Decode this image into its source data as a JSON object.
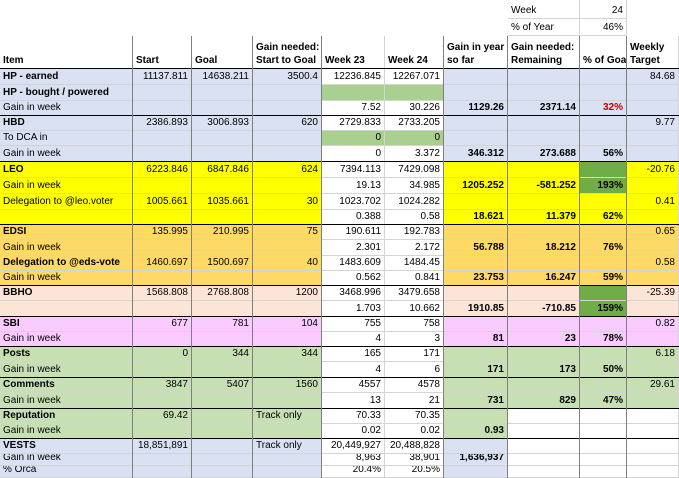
{
  "colors": {
    "blue": "#d9e1f2",
    "yellow": "#ffff00",
    "orange": "#ffd966",
    "peach": "#fce4d6",
    "pink": "#f9ccff",
    "green": "#c6e0b4",
    "bright_green": "#70ad47",
    "light_green": "#a9d08e",
    "white": "#ffffff",
    "text_red": "#c00000"
  },
  "week_label": "Week",
  "week_value": "24",
  "pct_year_label": "% of Year",
  "pct_year_value": "46%",
  "headers": [
    {
      "id": "item",
      "lines": [
        "Item"
      ]
    },
    {
      "id": "start",
      "lines": [
        "Start"
      ]
    },
    {
      "id": "goal",
      "lines": [
        "Goal"
      ]
    },
    {
      "id": "gain-needed",
      "lines": [
        "Gain needed:",
        "Start to Goal"
      ]
    },
    {
      "id": "week-23",
      "lines": [
        "Week 23"
      ]
    },
    {
      "id": "week-24",
      "lines": [
        "Week 24"
      ]
    },
    {
      "id": "gain-year",
      "lines": [
        "Gain in year",
        "so far"
      ]
    },
    {
      "id": "gain-remaining",
      "lines": [
        "Gain needed:",
        "Remaining"
      ]
    },
    {
      "id": "pct-goal",
      "lines": [
        "% of Goal"
      ]
    },
    {
      "id": "weekly-target",
      "lines": [
        "Weekly",
        "Target"
      ]
    }
  ],
  "rows": [
    [
      "blue",
      [
        "HP - earned",
        "b",
        "blue"
      ],
      [
        "11137.811",
        "",
        "blue"
      ],
      [
        "14638.211",
        "",
        "blue"
      ],
      [
        "3500.4",
        "",
        "blue"
      ],
      [
        "12236.845",
        "",
        "white"
      ],
      [
        "12267.071",
        "",
        "white"
      ],
      [
        "",
        "",
        "blue"
      ],
      [
        "",
        "",
        "blue"
      ],
      [
        "",
        "",
        "blue"
      ],
      [
        "84.68",
        "",
        "blue"
      ]
    ],
    [
      "blue",
      [
        "HP - bought / powered",
        "b",
        "blue"
      ],
      [
        "",
        "",
        "blue"
      ],
      [
        "",
        "",
        "blue"
      ],
      [
        "",
        "",
        "blue"
      ],
      [
        "",
        "",
        "light_green"
      ],
      [
        "",
        "",
        "light_green"
      ],
      [
        "",
        "",
        "blue"
      ],
      [
        "",
        "",
        "blue"
      ],
      [
        "",
        "",
        "blue"
      ],
      [
        "",
        "",
        "blue"
      ]
    ],
    [
      "blue",
      [
        "Gain in week",
        "",
        "blue"
      ],
      [
        "",
        "",
        "blue"
      ],
      [
        "",
        "",
        "blue"
      ],
      [
        "",
        "",
        "blue"
      ],
      [
        "7.52",
        "",
        "white"
      ],
      [
        "30.226",
        "",
        "white"
      ],
      [
        "1129.26",
        "b",
        "blue"
      ],
      [
        "2371.14",
        "b",
        "blue"
      ],
      [
        "32%",
        "br",
        "blue"
      ],
      [
        "",
        "",
        "blue"
      ]
    ],
    [
      "blue",
      [
        "HBD",
        "b",
        "blue"
      ],
      [
        "2386.893",
        "",
        "blue"
      ],
      [
        "3006.893",
        "",
        "blue"
      ],
      [
        "620",
        "",
        "blue"
      ],
      [
        "2729.833",
        "",
        "white"
      ],
      [
        "2733.205",
        "",
        "white"
      ],
      [
        "",
        "",
        "blue"
      ],
      [
        "",
        "",
        "blue"
      ],
      [
        "",
        "",
        "blue"
      ],
      [
        "9.77",
        "",
        "blue"
      ]
    ],
    [
      "blue",
      [
        "To DCA in",
        "",
        "blue"
      ],
      [
        "",
        "",
        "blue"
      ],
      [
        "",
        "",
        "blue"
      ],
      [
        "",
        "",
        "blue"
      ],
      [
        "0",
        "",
        "light_green"
      ],
      [
        "0",
        "",
        "light_green"
      ],
      [
        "",
        "",
        "blue"
      ],
      [
        "",
        "",
        "blue"
      ],
      [
        "",
        "",
        "blue"
      ],
      [
        "",
        "",
        "blue"
      ]
    ],
    [
      "blue",
      [
        "Gain in week",
        "",
        "blue"
      ],
      [
        "",
        "",
        "blue"
      ],
      [
        "",
        "",
        "blue"
      ],
      [
        "",
        "",
        "blue"
      ],
      [
        "0",
        "",
        "white"
      ],
      [
        "3.372",
        "",
        "white"
      ],
      [
        "346.312",
        "b",
        "blue"
      ],
      [
        "273.688",
        "b",
        "blue"
      ],
      [
        "56%",
        "b",
        "blue"
      ],
      [
        "",
        "",
        "blue"
      ]
    ],
    [
      "yellow",
      [
        "LEO",
        "b",
        "yellow"
      ],
      [
        "6223.846",
        "",
        "yellow"
      ],
      [
        "6847.846",
        "",
        "yellow"
      ],
      [
        "624",
        "",
        "yellow"
      ],
      [
        "7394.113",
        "",
        "white"
      ],
      [
        "7429.098",
        "",
        "white"
      ],
      [
        "",
        "",
        "yellow"
      ],
      [
        "",
        "",
        "yellow"
      ],
      [
        "",
        "",
        "bright_green"
      ],
      [
        "-20.76",
        "",
        "yellow"
      ]
    ],
    [
      "yellow",
      [
        "Gain in week",
        "",
        "yellow"
      ],
      [
        "",
        "",
        "yellow"
      ],
      [
        "",
        "",
        "yellow"
      ],
      [
        "",
        "",
        "yellow"
      ],
      [
        "19.13",
        "",
        "white"
      ],
      [
        "34.985",
        "",
        "white"
      ],
      [
        "1205.252",
        "b",
        "yellow"
      ],
      [
        "-581.252",
        "b",
        "yellow"
      ],
      [
        "193%",
        "b",
        "bright_green"
      ],
      [
        "",
        "",
        "yellow"
      ]
    ],
    [
      "yellow",
      [
        "Delegation to @leo.voter",
        "",
        "yellow"
      ],
      [
        "1005.661",
        "",
        "yellow"
      ],
      [
        "1035.661",
        "",
        "yellow"
      ],
      [
        "30",
        "",
        "yellow"
      ],
      [
        "1023.702",
        "",
        "white"
      ],
      [
        "1024.282",
        "",
        "white"
      ],
      [
        "",
        "",
        "yellow"
      ],
      [
        "",
        "",
        "yellow"
      ],
      [
        "",
        "",
        "yellow"
      ],
      [
        "0.41",
        "",
        "yellow"
      ]
    ],
    [
      "yellow",
      [
        "",
        "",
        "yellow"
      ],
      [
        "",
        "",
        "yellow"
      ],
      [
        "",
        "",
        "yellow"
      ],
      [
        "",
        "",
        "yellow"
      ],
      [
        "0.388",
        "",
        "white"
      ],
      [
        "0.58",
        "",
        "white"
      ],
      [
        "18.621",
        "b",
        "yellow"
      ],
      [
        "11.379",
        "b",
        "yellow"
      ],
      [
        "62%",
        "b",
        "yellow"
      ],
      [
        "",
        "",
        "yellow"
      ]
    ],
    [
      "orange",
      [
        "EDSI",
        "b",
        "orange"
      ],
      [
        "135.995",
        "",
        "orange"
      ],
      [
        "210.995",
        "",
        "orange"
      ],
      [
        "75",
        "",
        "orange"
      ],
      [
        "190.611",
        "",
        "white"
      ],
      [
        "192.783",
        "",
        "white"
      ],
      [
        "",
        "",
        "orange"
      ],
      [
        "",
        "",
        "orange"
      ],
      [
        "",
        "",
        "orange"
      ],
      [
        "0.65",
        "",
        "orange"
      ]
    ],
    [
      "orange",
      [
        "Gain in week",
        "",
        "orange"
      ],
      [
        "",
        "",
        "orange"
      ],
      [
        "",
        "",
        "orange"
      ],
      [
        "",
        "",
        "orange"
      ],
      [
        "2.301",
        "",
        "white"
      ],
      [
        "2.172",
        "",
        "white"
      ],
      [
        "56.788",
        "b",
        "orange"
      ],
      [
        "18.212",
        "b",
        "orange"
      ],
      [
        "76%",
        "b",
        "orange"
      ],
      [
        "",
        "",
        "orange"
      ]
    ],
    [
      "orange",
      [
        "Delegation to @eds-vote",
        "b",
        "orange"
      ],
      [
        "1460.697",
        "",
        "orange"
      ],
      [
        "1500.697",
        "",
        "orange"
      ],
      [
        "40",
        "",
        "orange"
      ],
      [
        "1483.609",
        "",
        "white"
      ],
      [
        "1484.45",
        "",
        "white"
      ],
      [
        "",
        "",
        "orange"
      ],
      [
        "",
        "",
        "orange"
      ],
      [
        "",
        "",
        "orange"
      ],
      [
        "0.58",
        "",
        "orange"
      ]
    ],
    [
      "orange",
      [
        "Gain in week",
        "",
        "orange"
      ],
      [
        "",
        "",
        "orange"
      ],
      [
        "",
        "",
        "orange"
      ],
      [
        "",
        "",
        "orange"
      ],
      [
        "0.562",
        "",
        "white"
      ],
      [
        "0.841",
        "",
        "white"
      ],
      [
        "23.753",
        "b",
        "orange"
      ],
      [
        "16.247",
        "b",
        "orange"
      ],
      [
        "59%",
        "b",
        "orange"
      ],
      [
        "",
        "",
        "orange"
      ]
    ],
    [
      "peach",
      [
        "BBHO",
        "b",
        "peach"
      ],
      [
        "1568.808",
        "",
        "peach"
      ],
      [
        "2768.808",
        "",
        "peach"
      ],
      [
        "1200",
        "",
        "peach"
      ],
      [
        "3468.996",
        "",
        "white"
      ],
      [
        "3479.658",
        "",
        "white"
      ],
      [
        "",
        "",
        "peach"
      ],
      [
        "",
        "",
        "peach"
      ],
      [
        "",
        "",
        "bright_green"
      ],
      [
        "-25.39",
        "",
        "peach"
      ]
    ],
    [
      "peach",
      [
        "",
        "",
        "peach"
      ],
      [
        "",
        "",
        "peach"
      ],
      [
        "",
        "",
        "peach"
      ],
      [
        "",
        "",
        "peach"
      ],
      [
        "1.703",
        "",
        "white"
      ],
      [
        "10.662",
        "",
        "white"
      ],
      [
        "1910.85",
        "b",
        "peach"
      ],
      [
        "-710.85",
        "b",
        "peach"
      ],
      [
        "159%",
        "b",
        "bright_green"
      ],
      [
        "",
        "",
        "peach"
      ]
    ],
    [
      "pink",
      [
        "SBI",
        "b",
        "pink"
      ],
      [
        "677",
        "",
        "pink"
      ],
      [
        "781",
        "",
        "pink"
      ],
      [
        "104",
        "",
        "pink"
      ],
      [
        "755",
        "",
        "white"
      ],
      [
        "758",
        "",
        "white"
      ],
      [
        "",
        "",
        "pink"
      ],
      [
        "",
        "",
        "pink"
      ],
      [
        "",
        "",
        "pink"
      ],
      [
        "0.82",
        "",
        "pink"
      ]
    ],
    [
      "pink",
      [
        "Gain in week",
        "",
        "pink"
      ],
      [
        "",
        "",
        "pink"
      ],
      [
        "",
        "",
        "pink"
      ],
      [
        "",
        "",
        "pink"
      ],
      [
        "4",
        "",
        "white"
      ],
      [
        "3",
        "",
        "white"
      ],
      [
        "81",
        "b",
        "pink"
      ],
      [
        "23",
        "b",
        "pink"
      ],
      [
        "78%",
        "b",
        "pink"
      ],
      [
        "",
        "",
        "pink"
      ]
    ],
    [
      "green",
      [
        "Posts",
        "b",
        "green"
      ],
      [
        "0",
        "",
        "green"
      ],
      [
        "344",
        "",
        "green"
      ],
      [
        "344",
        "",
        "green"
      ],
      [
        "165",
        "",
        "white"
      ],
      [
        "171",
        "",
        "white"
      ],
      [
        "",
        "",
        "green"
      ],
      [
        "",
        "",
        "green"
      ],
      [
        "",
        "",
        "green"
      ],
      [
        "6.18",
        "",
        "green"
      ]
    ],
    [
      "green",
      [
        "Gain in week",
        "",
        "green"
      ],
      [
        "",
        "",
        "green"
      ],
      [
        "",
        "",
        "green"
      ],
      [
        "",
        "",
        "green"
      ],
      [
        "4",
        "",
        "white"
      ],
      [
        "6",
        "",
        "white"
      ],
      [
        "171",
        "b",
        "green"
      ],
      [
        "173",
        "b",
        "green"
      ],
      [
        "50%",
        "b",
        "green"
      ],
      [
        "",
        "",
        "green"
      ]
    ],
    [
      "green",
      [
        "Comments",
        "b",
        "green"
      ],
      [
        "3847",
        "",
        "green"
      ],
      [
        "5407",
        "",
        "green"
      ],
      [
        "1560",
        "",
        "green"
      ],
      [
        "4557",
        "",
        "white"
      ],
      [
        "4578",
        "",
        "white"
      ],
      [
        "",
        "",
        "green"
      ],
      [
        "",
        "",
        "green"
      ],
      [
        "",
        "",
        "green"
      ],
      [
        "29.61",
        "",
        "green"
      ]
    ],
    [
      "green",
      [
        "Gain in week",
        "",
        "green"
      ],
      [
        "",
        "",
        "green"
      ],
      [
        "",
        "",
        "green"
      ],
      [
        "",
        "",
        "green"
      ],
      [
        "13",
        "",
        "white"
      ],
      [
        "21",
        "",
        "white"
      ],
      [
        "731",
        "b",
        "green"
      ],
      [
        "829",
        "b",
        "green"
      ],
      [
        "47%",
        "b",
        "green"
      ],
      [
        "",
        "",
        "green"
      ]
    ],
    [
      "green",
      [
        "Reputation",
        "b",
        "green"
      ],
      [
        "69.42",
        "",
        "green"
      ],
      [
        "",
        "",
        "green"
      ],
      [
        "Track only",
        "l",
        "green"
      ],
      [
        "70.33",
        "",
        "white"
      ],
      [
        "70.35",
        "",
        "white"
      ],
      [
        "",
        "",
        "green"
      ],
      [
        "",
        "",
        "white"
      ],
      [
        "",
        "",
        "white"
      ],
      [
        "",
        "",
        "white"
      ]
    ],
    [
      "green",
      [
        "Gain in week",
        "",
        "green"
      ],
      [
        "",
        "",
        "green"
      ],
      [
        "",
        "",
        "green"
      ],
      [
        "",
        "",
        "green"
      ],
      [
        "0.02",
        "",
        "white"
      ],
      [
        "0.02",
        "",
        "white"
      ],
      [
        "0.93",
        "b",
        "green"
      ],
      [
        "",
        "",
        "white"
      ],
      [
        "",
        "",
        "white"
      ],
      [
        "",
        "",
        "white"
      ]
    ],
    [
      "blue",
      [
        "VESTS",
        "b",
        "blue"
      ],
      [
        "18,851,891",
        "",
        "blue"
      ],
      [
        "",
        "",
        "blue"
      ],
      [
        "Track only",
        "l",
        "blue"
      ],
      [
        "20,449,927",
        "",
        "white"
      ],
      [
        "20,488,828",
        "",
        "white"
      ],
      [
        "",
        "",
        "blue"
      ],
      [
        "",
        "",
        "white"
      ],
      [
        "",
        "",
        "white"
      ],
      [
        "",
        "",
        "white"
      ]
    ],
    [
      "blue",
      [
        "Gain in week",
        "",
        "blue"
      ],
      [
        "",
        "",
        "blue"
      ],
      [
        "",
        "",
        "blue"
      ],
      [
        "",
        "",
        "blue"
      ],
      [
        "8,963",
        "",
        "white"
      ],
      [
        "38,901",
        "",
        "white"
      ],
      [
        "1,636,937",
        "b",
        "blue"
      ],
      [
        "",
        "",
        "white"
      ],
      [
        "",
        "",
        "white"
      ],
      [
        "",
        "",
        "white"
      ]
    ],
    [
      "blue",
      [
        "% Orca",
        "",
        "blue"
      ],
      [
        "",
        "",
        "blue"
      ],
      [
        "",
        "",
        "blue"
      ],
      [
        "",
        "",
        "blue"
      ],
      [
        "20.4%",
        "",
        "white"
      ],
      [
        "20.5%",
        "",
        "white"
      ],
      [
        "",
        "",
        "blue"
      ],
      [
        "",
        "",
        "white"
      ],
      [
        "",
        "",
        "white"
      ],
      [
        "",
        "",
        "white"
      ]
    ]
  ]
}
